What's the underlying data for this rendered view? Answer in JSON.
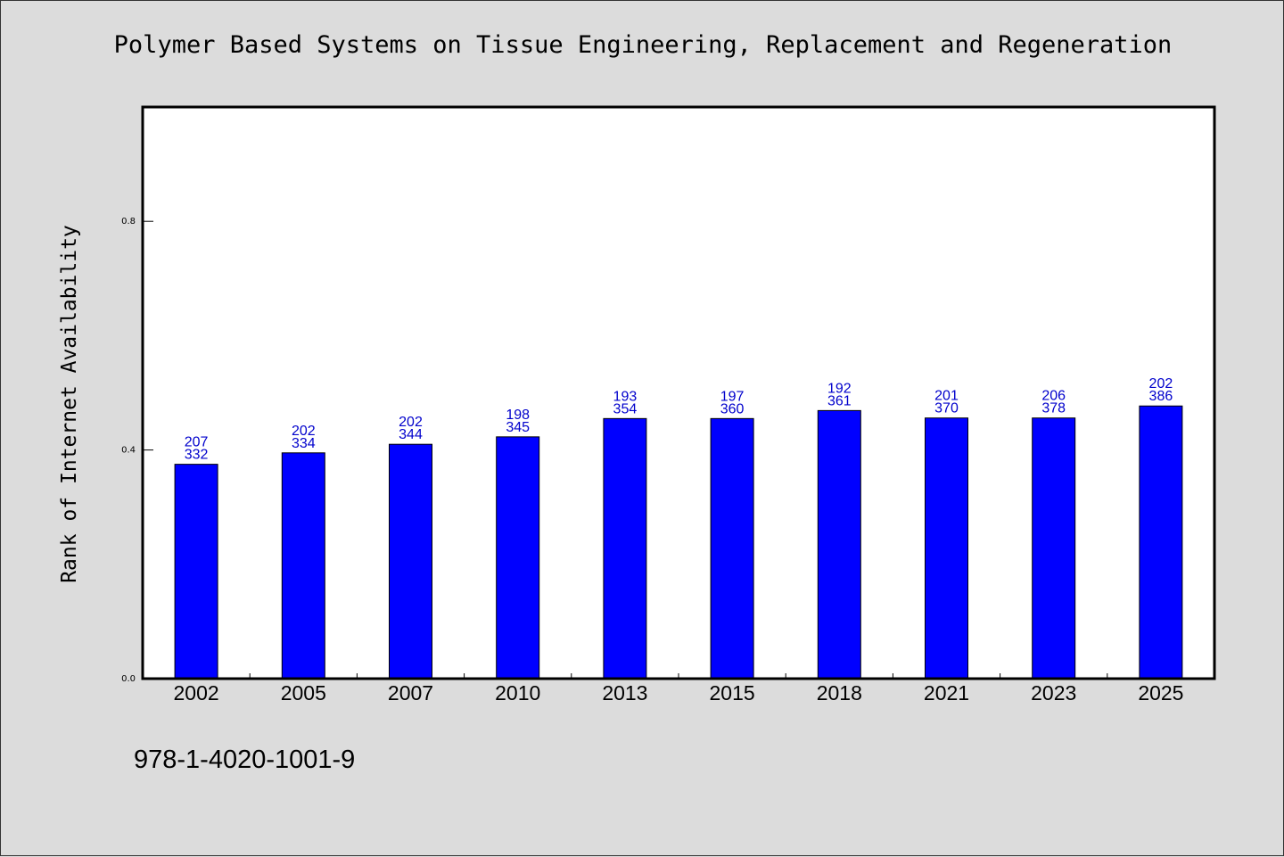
{
  "chart_data": {
    "type": "bar",
    "title": "Polymer Based Systems on Tissue Engineering, Replacement and Regeneration",
    "ylabel": "Rank of Internet Availability",
    "xlabel": "",
    "categories": [
      "2002",
      "2005",
      "2007",
      "2010",
      "2013",
      "2015",
      "2018",
      "2021",
      "2023",
      "2025"
    ],
    "values": [
      0.375,
      0.395,
      0.41,
      0.423,
      0.455,
      0.455,
      0.469,
      0.456,
      0.456,
      0.477
    ],
    "labels_top": [
      "207",
      "202",
      "202",
      "198",
      "193",
      "197",
      "192",
      "201",
      "206",
      "202"
    ],
    "labels_bottom": [
      "332",
      "334",
      "344",
      "345",
      "354",
      "360",
      "361",
      "370",
      "378",
      "386"
    ],
    "ylim": [
      0,
      1
    ],
    "yticks": [
      0.0,
      0.4,
      0.8
    ],
    "ytick_labels": [
      "0.0",
      "0.4",
      "0.8"
    ],
    "grid": false,
    "legend": "none",
    "colors": {
      "bar": "#0000ff",
      "label": "#0000cc",
      "plot_bg": "#ffffff",
      "page_bg": "#dcdcdc"
    }
  },
  "footer": {
    "isbn": "978-1-4020-1001-9"
  }
}
